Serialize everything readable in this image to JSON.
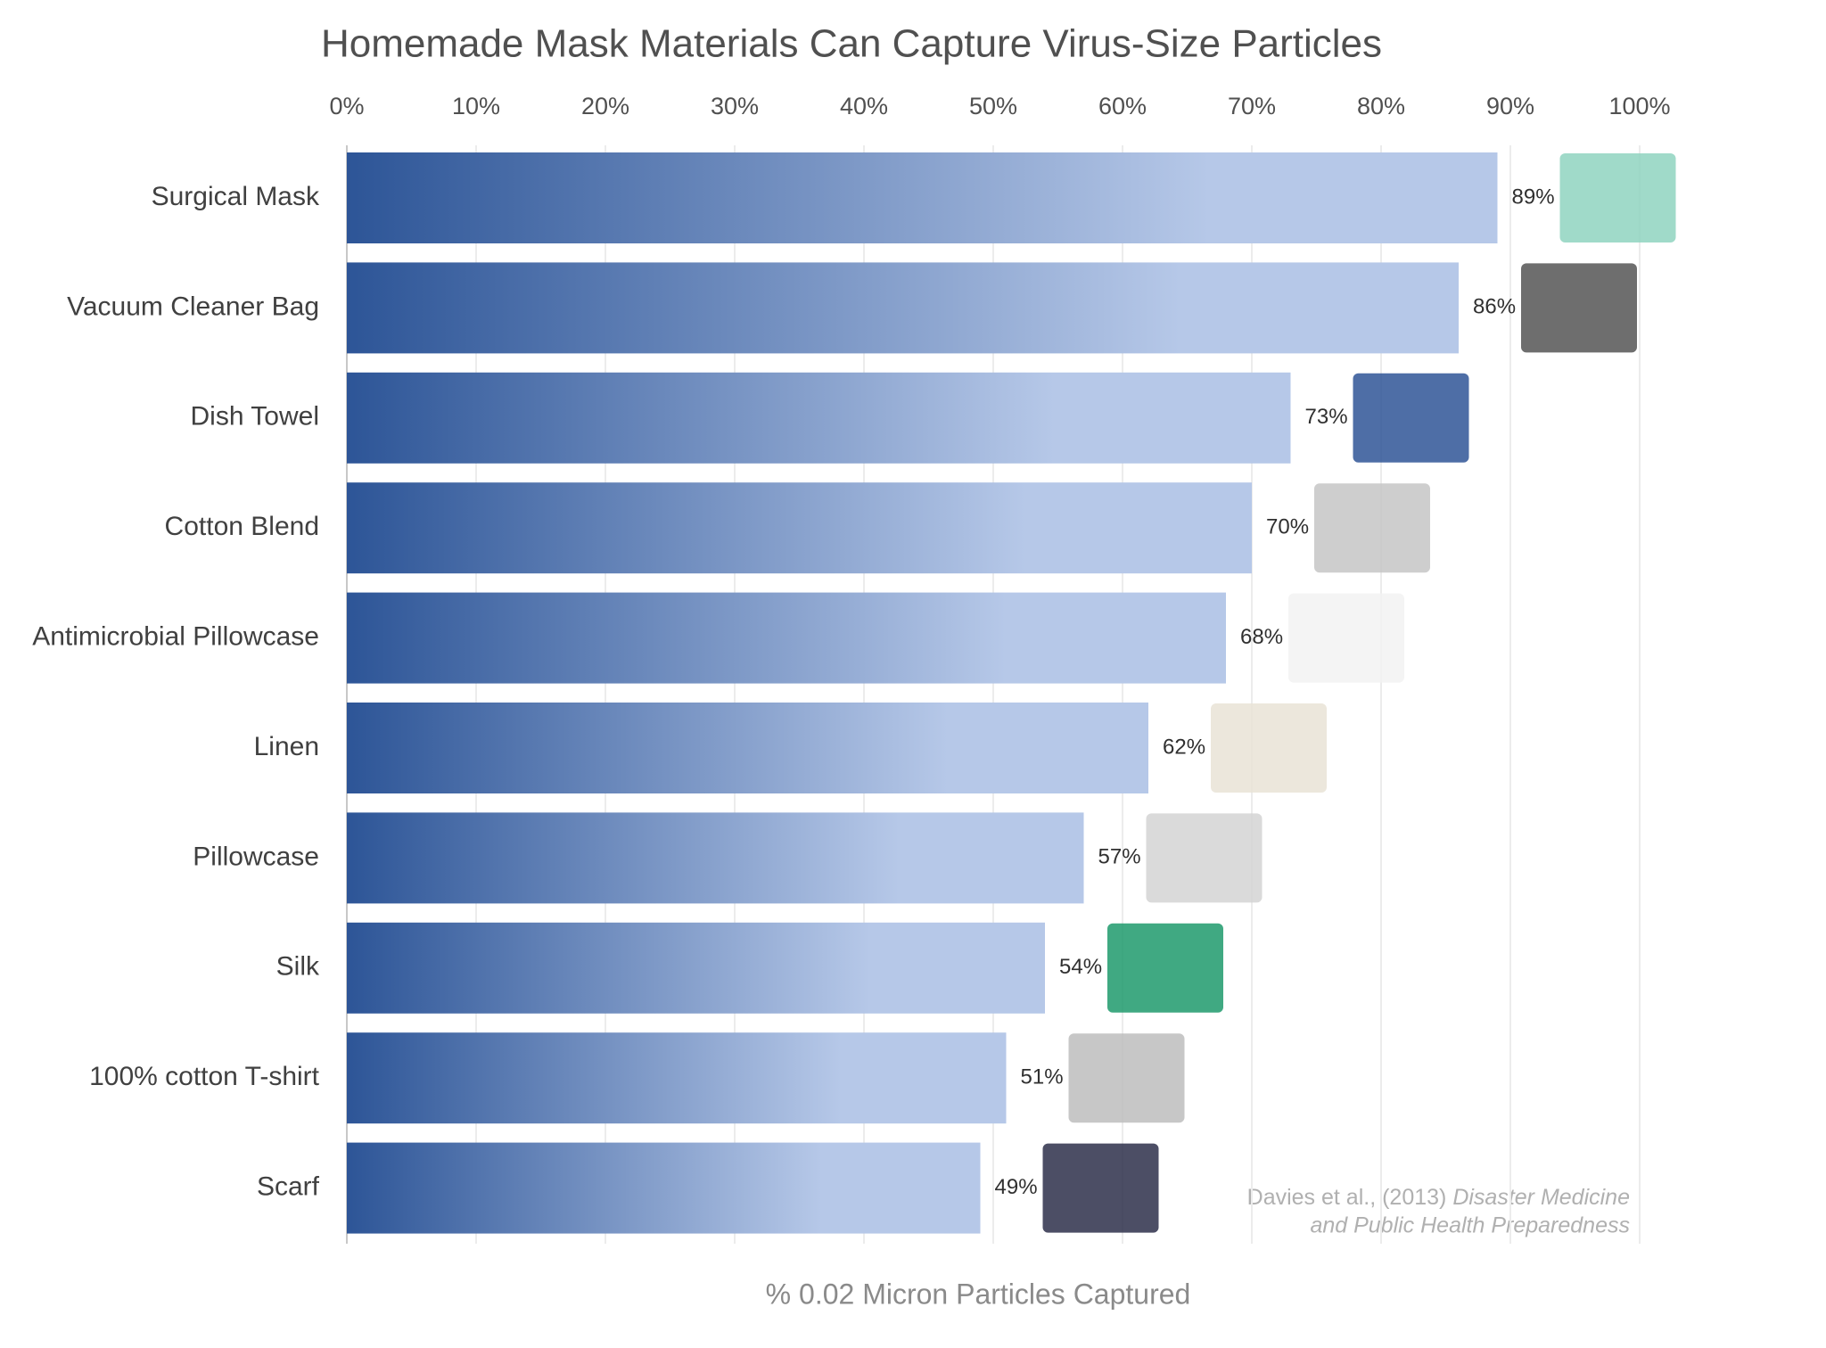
{
  "chart_data": {
    "type": "bar",
    "orientation": "horizontal",
    "title": "Homemade Mask Materials Can Capture Virus-Size Particles",
    "x_label": "% 0.02 Micron Particles Captured",
    "source_lines": [
      "Davies et al., (2013)",
      "Disaster Medicine",
      "and Public Health Preparedness"
    ],
    "categories": [
      "Surgical Mask",
      "Vacuum Cleaner Bag",
      "Dish Towel",
      "Cotton Blend",
      "Antimicrobial Pillowcase",
      "Linen",
      "Pillowcase",
      "Silk",
      "100% cotton T-shirt",
      "Scarf"
    ],
    "values": [
      89,
      86,
      73,
      70,
      68,
      62,
      57,
      54,
      51,
      49
    ],
    "value_labels": [
      "89%",
      "86%",
      "73%",
      "70%",
      "68%",
      "62%",
      "57%",
      "54%",
      "51%",
      "49%"
    ],
    "color": "#2d5597",
    "color_end": "#b6c8e8",
    "xlim": [
      0,
      100
    ],
    "xticks": [
      {
        "value": 0,
        "label": "0%"
      },
      {
        "value": 10,
        "label": "10%"
      },
      {
        "value": 20,
        "label": "20%"
      },
      {
        "value": 30,
        "label": "30%"
      },
      {
        "value": 40,
        "label": "40%"
      },
      {
        "value": 50,
        "label": "50%"
      },
      {
        "value": 60,
        "label": "60%"
      },
      {
        "value": 70,
        "label": "70%"
      },
      {
        "value": 80,
        "label": "80%"
      },
      {
        "value": 90,
        "label": "90%"
      },
      {
        "value": 100,
        "label": "100%"
      }
    ],
    "grid": true
  }
}
